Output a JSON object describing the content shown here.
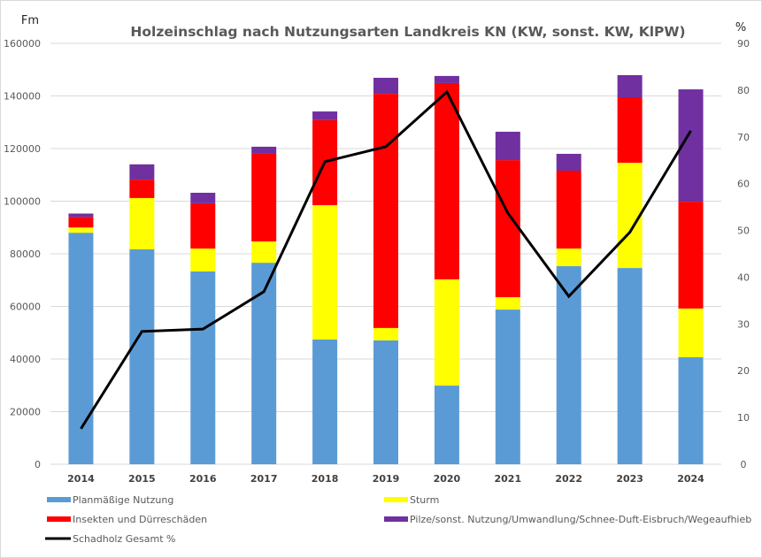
{
  "chart_data": {
    "type": "bar",
    "subtype": "stacked-bar-with-line-secondary-axis",
    "title": "Holzeinschlag nach Nutzungsarten Landkreis KN (KW, sonst. KW, KlPW)",
    "ylabel": "Fm",
    "y2label": "%",
    "xlabel": "",
    "ylim": [
      0,
      160000
    ],
    "y2lim": [
      0,
      90
    ],
    "yticks": [
      "0",
      "20000",
      "40000",
      "60000",
      "80000",
      "100000",
      "120000",
      "140000",
      "160000"
    ],
    "y2ticks": [
      "0",
      "10",
      "20",
      "30",
      "40",
      "50",
      "60",
      "70",
      "80",
      "90"
    ],
    "grid": true,
    "legend_position": "bottom",
    "categories": [
      "2014",
      "2015",
      "2016",
      "2017",
      "2018",
      "2019",
      "2020",
      "2021",
      "2022",
      "2023",
      "2024"
    ],
    "series": [
      {
        "name": "Planmäßige Nutzung",
        "type": "bar",
        "axis": "left",
        "color": "#5b9bd5",
        "values": [
          88000,
          81700,
          73300,
          76600,
          47400,
          47100,
          29900,
          58800,
          75300,
          74600,
          40700
        ]
      },
      {
        "name": "Sturm",
        "type": "bar",
        "axis": "left",
        "color": "#ffff00",
        "values": [
          2000,
          19500,
          8700,
          8100,
          51100,
          4700,
          40400,
          4700,
          6700,
          40000,
          18500
        ]
      },
      {
        "name": "Insekten und Dürreschäden",
        "type": "bar",
        "axis": "left",
        "color": "#ff0000",
        "values": [
          4000,
          7000,
          17200,
          33300,
          32300,
          89000,
          74600,
          52100,
          29600,
          24900,
          40600
        ]
      },
      {
        "name": "Pilze/sonst. Nutzung/Umwandlung/Schnee-Duft-Eisbruch/Wegeaufhieb",
        "type": "bar",
        "axis": "left",
        "color": "#7030a0",
        "values": [
          1300,
          5800,
          4000,
          2700,
          3300,
          6100,
          2700,
          10800,
          6400,
          8400,
          42700
        ]
      },
      {
        "name": "Schadholz Gesamt %",
        "type": "line",
        "axis": "right",
        "color": "#000000",
        "values": [
          7.6,
          28.4,
          28.9,
          36.9,
          64.7,
          67.9,
          79.6,
          53.7,
          35.9,
          49.6,
          71.3
        ]
      }
    ]
  }
}
